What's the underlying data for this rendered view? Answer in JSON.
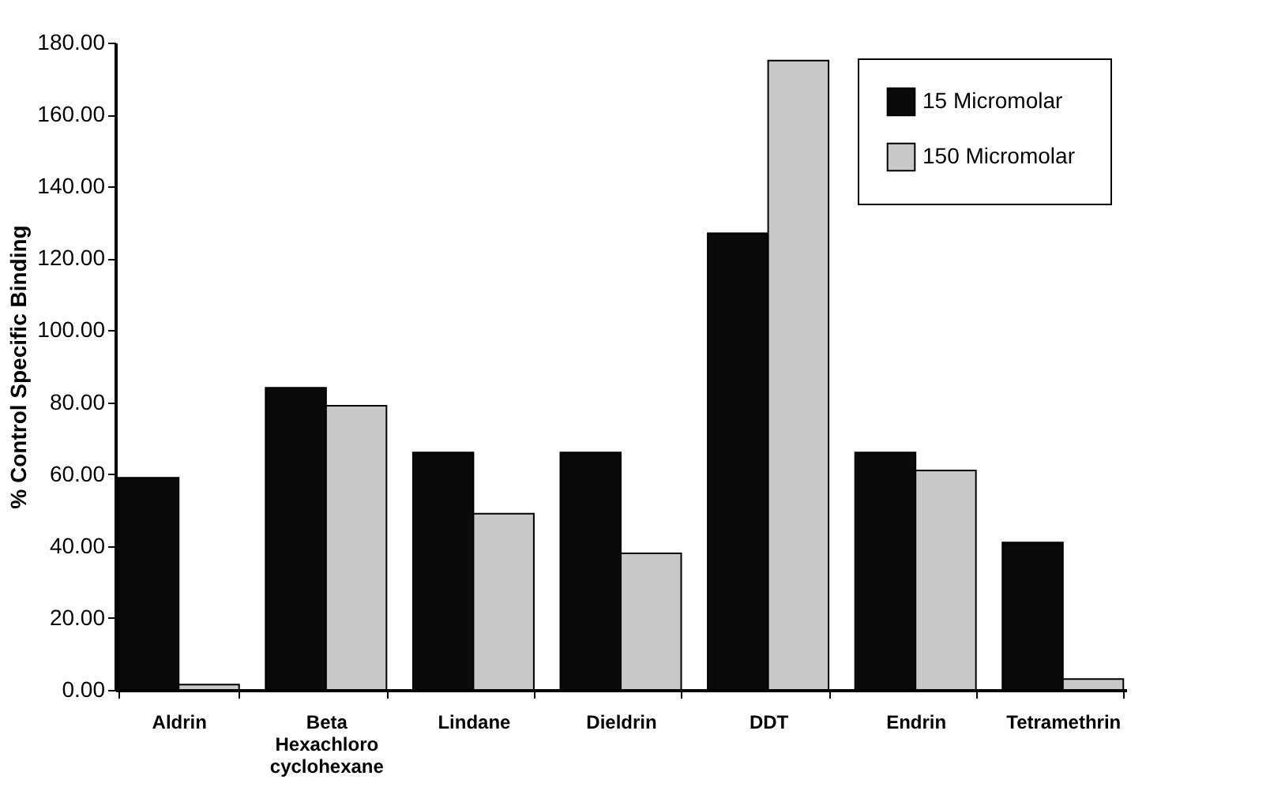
{
  "chart_data": {
    "type": "bar",
    "ylabel": "% Control Specific Binding",
    "categories": [
      "Aldrin",
      "Beta Hexachloro cyclohexane",
      "Lindane",
      "Dieldrin",
      "DDT",
      "Endrin",
      "Tetramethrin"
    ],
    "series": [
      {
        "name": "15  Micromolar",
        "color": "#0a0a0a",
        "values": [
          59,
          84,
          66,
          66,
          127,
          66,
          41
        ]
      },
      {
        "name": "150  Micromolar",
        "color": "#c8c8c8",
        "values": [
          1.5,
          79,
          49,
          38,
          175,
          61,
          3
        ]
      }
    ],
    "ylim": [
      0,
      180
    ],
    "yticks": [
      {
        "value": 0,
        "label": "0.00"
      },
      {
        "value": 20,
        "label": "20.00"
      },
      {
        "value": 40,
        "label": "40.00"
      },
      {
        "value": 60,
        "label": "60.00"
      },
      {
        "value": 80,
        "label": "80.00"
      },
      {
        "value": 100,
        "label": "100.00"
      },
      {
        "value": 120,
        "label": "120.00"
      },
      {
        "value": 140,
        "label": "140.00"
      },
      {
        "value": 160,
        "label": "160.00"
      },
      {
        "value": 180,
        "label": "180.00"
      }
    ],
    "grid": false,
    "legend": "top right"
  }
}
